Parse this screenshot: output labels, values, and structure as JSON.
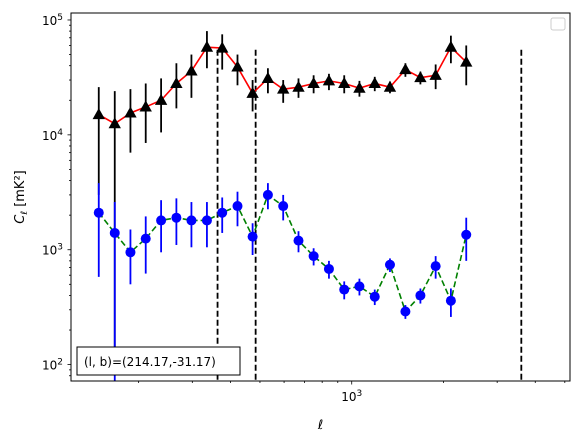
{
  "chart_data": {
    "type": "line",
    "title": "",
    "xlabel": "ℓ",
    "ylabel_main": "C",
    "ylabel_sub": "ℓ",
    "ylabel_units": "[mK²]",
    "xscale": "log",
    "yscale": "log",
    "xlim": [
      120,
      5200
    ],
    "ylim": [
      72,
      115000
    ],
    "x_tick_labels": [
      {
        "value": 1000,
        "base": "10",
        "exp": "3"
      }
    ],
    "y_tick_labels": [
      {
        "value": 100,
        "base": "10",
        "exp": "2"
      },
      {
        "value": 1000,
        "base": "10",
        "exp": "3"
      },
      {
        "value": 10000,
        "base": "10",
        "exp": "4"
      },
      {
        "value": 100000,
        "base": "10",
        "exp": "5"
      }
    ],
    "annotation": {
      "text": "(l, b)=(214.17,-31.17)"
    },
    "vlines": [
      363,
      484,
      3600
    ],
    "legend": {
      "placement": "top-right",
      "entries": []
    },
    "grid": false,
    "series": [
      {
        "style": "solid",
        "line_color": "#ff0000",
        "marker": "triangle",
        "marker_color": "#000000",
        "errbar_color": "#000000",
        "points": [
          {
            "x": 148,
            "y": 15000,
            "lo": 3000,
            "hi": 26000
          },
          {
            "x": 167,
            "y": 12500,
            "lo": 100,
            "hi": 24000
          },
          {
            "x": 188,
            "y": 15500,
            "lo": 7000,
            "hi": 25000
          },
          {
            "x": 211,
            "y": 17500,
            "lo": 8500,
            "hi": 28000
          },
          {
            "x": 237,
            "y": 20000,
            "lo": 10500,
            "hi": 31000
          },
          {
            "x": 266,
            "y": 28000,
            "lo": 17000,
            "hi": 42000
          },
          {
            "x": 298,
            "y": 36000,
            "lo": 21000,
            "hi": 50000
          },
          {
            "x": 335,
            "y": 58000,
            "lo": 38000,
            "hi": 80000
          },
          {
            "x": 376,
            "y": 57000,
            "lo": 37000,
            "hi": 75000
          },
          {
            "x": 422,
            "y": 39000,
            "lo": 27000,
            "hi": 50000
          },
          {
            "x": 473,
            "y": 23000,
            "lo": 16000,
            "hi": 30000
          },
          {
            "x": 531,
            "y": 31000,
            "lo": 23000,
            "hi": 38000
          },
          {
            "x": 596,
            "y": 25000,
            "lo": 19000,
            "hi": 30000
          },
          {
            "x": 669,
            "y": 26000,
            "lo": 21000,
            "hi": 31000
          },
          {
            "x": 750,
            "y": 28000,
            "lo": 23000,
            "hi": 33000
          },
          {
            "x": 842,
            "y": 29500,
            "lo": 24500,
            "hi": 34000
          },
          {
            "x": 945,
            "y": 28000,
            "lo": 23000,
            "hi": 33000
          },
          {
            "x": 1060,
            "y": 25500,
            "lo": 21500,
            "hi": 29500
          },
          {
            "x": 1190,
            "y": 28000,
            "lo": 24000,
            "hi": 32000
          },
          {
            "x": 1335,
            "y": 26000,
            "lo": 23000,
            "hi": 29000
          },
          {
            "x": 1500,
            "y": 37000,
            "lo": 32000,
            "hi": 42000
          },
          {
            "x": 1680,
            "y": 31500,
            "lo": 27500,
            "hi": 35500
          },
          {
            "x": 1885,
            "y": 33000,
            "lo": 25000,
            "hi": 41000
          },
          {
            "x": 2115,
            "y": 58000,
            "lo": 42000,
            "hi": 73000
          },
          {
            "x": 2375,
            "y": 43000,
            "lo": 27000,
            "hi": 60000
          }
        ]
      },
      {
        "style": "dashed",
        "line_color": "#008000",
        "marker": "circle",
        "marker_color": "#0000ff",
        "errbar_color": "#0000ff",
        "points": [
          {
            "x": 148,
            "y": 2100,
            "lo": 580,
            "hi": 3800
          },
          {
            "x": 167,
            "y": 1400,
            "lo": 72,
            "hi": 2600
          },
          {
            "x": 188,
            "y": 950,
            "lo": 500,
            "hi": 1500
          },
          {
            "x": 211,
            "y": 1250,
            "lo": 620,
            "hi": 1950
          },
          {
            "x": 237,
            "y": 1800,
            "lo": 950,
            "hi": 2700
          },
          {
            "x": 266,
            "y": 1900,
            "lo": 1100,
            "hi": 2800
          },
          {
            "x": 298,
            "y": 1800,
            "lo": 1050,
            "hi": 2600
          },
          {
            "x": 335,
            "y": 1800,
            "lo": 1050,
            "hi": 2600
          },
          {
            "x": 376,
            "y": 2100,
            "lo": 1400,
            "hi": 2850
          },
          {
            "x": 422,
            "y": 2400,
            "lo": 1600,
            "hi": 3200
          },
          {
            "x": 473,
            "y": 1300,
            "lo": 900,
            "hi": 1700
          },
          {
            "x": 531,
            "y": 3000,
            "lo": 2250,
            "hi": 3800
          },
          {
            "x": 596,
            "y": 2400,
            "lo": 1800,
            "hi": 3000
          },
          {
            "x": 669,
            "y": 1200,
            "lo": 950,
            "hi": 1450
          },
          {
            "x": 750,
            "y": 880,
            "lo": 730,
            "hi": 1030
          },
          {
            "x": 842,
            "y": 680,
            "lo": 560,
            "hi": 800
          },
          {
            "x": 945,
            "y": 450,
            "lo": 370,
            "hi": 530
          },
          {
            "x": 1060,
            "y": 480,
            "lo": 400,
            "hi": 560
          },
          {
            "x": 1190,
            "y": 390,
            "lo": 330,
            "hi": 450
          },
          {
            "x": 1335,
            "y": 740,
            "lo": 640,
            "hi": 840
          },
          {
            "x": 1500,
            "y": 290,
            "lo": 250,
            "hi": 330
          },
          {
            "x": 1680,
            "y": 400,
            "lo": 340,
            "hi": 460
          },
          {
            "x": 1885,
            "y": 720,
            "lo": 560,
            "hi": 880
          },
          {
            "x": 2115,
            "y": 360,
            "lo": 260,
            "hi": 460
          },
          {
            "x": 2375,
            "y": 1350,
            "lo": 800,
            "hi": 1900
          }
        ]
      }
    ]
  }
}
